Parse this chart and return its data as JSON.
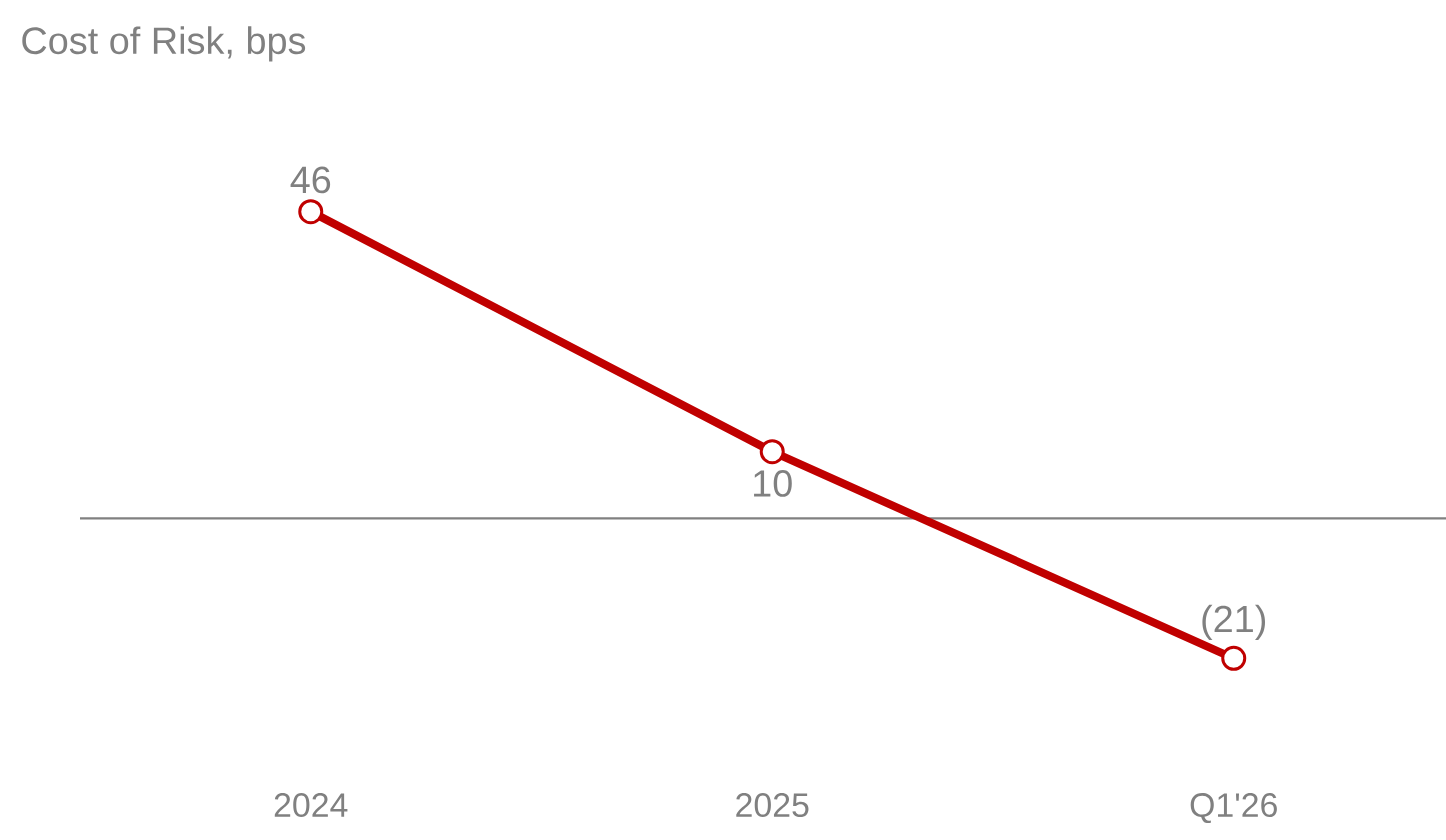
{
  "chart_data": {
    "type": "line",
    "title": "Cost of Risk, bps",
    "categories": [
      "2024",
      "2025",
      "Q1'26"
    ],
    "series": [
      {
        "color": "#c00000",
        "values": [
          46,
          10,
          -21
        ],
        "value_labels": [
          "46",
          "10",
          "(21)"
        ]
      }
    ],
    "marker": "circle",
    "line_style": "solid",
    "ref_lines": [
      {
        "axis": "y",
        "value": 0,
        "color": "#808080"
      }
    ]
  }
}
